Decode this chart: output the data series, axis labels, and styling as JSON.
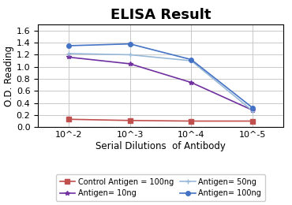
{
  "title": "ELISA Result",
  "xlabel": "Serial Dilutions  of Antibody",
  "ylabel": "O.D. Reading",
  "x_values": [
    1,
    2,
    3,
    4
  ],
  "x_labels": [
    "10^-2",
    "10^-3",
    "10^-4",
    "10^-5"
  ],
  "series": [
    {
      "label": "Control Antigen = 100ng",
      "color": "#c0504d",
      "marker": "s",
      "linestyle": "-",
      "y_values": [
        0.13,
        0.11,
        0.1,
        0.1
      ]
    },
    {
      "label": "Antigen= 10ng",
      "color": "#7030a0",
      "marker": "*",
      "linestyle": "-",
      "y_values": [
        1.16,
        1.05,
        0.74,
        0.28
      ]
    },
    {
      "label": "Antigen= 50ng",
      "color": "#99b9d9",
      "marker": "+",
      "linestyle": "-",
      "y_values": [
        1.22,
        1.2,
        1.1,
        0.27
      ]
    },
    {
      "label": "Antigen= 100ng",
      "color": "#4472c4",
      "marker": "o",
      "linestyle": "-",
      "y_values": [
        1.35,
        1.38,
        1.12,
        0.32
      ]
    }
  ],
  "ylim": [
    0,
    1.7
  ],
  "yticks": [
    0.0,
    0.2,
    0.4,
    0.6,
    0.8,
    1.0,
    1.2,
    1.4,
    1.6
  ],
  "background_color": "#ffffff",
  "grid_color": "#c0c0c0",
  "title_fontsize": 13,
  "axis_label_fontsize": 8.5,
  "tick_fontsize": 8,
  "legend_fontsize": 7
}
